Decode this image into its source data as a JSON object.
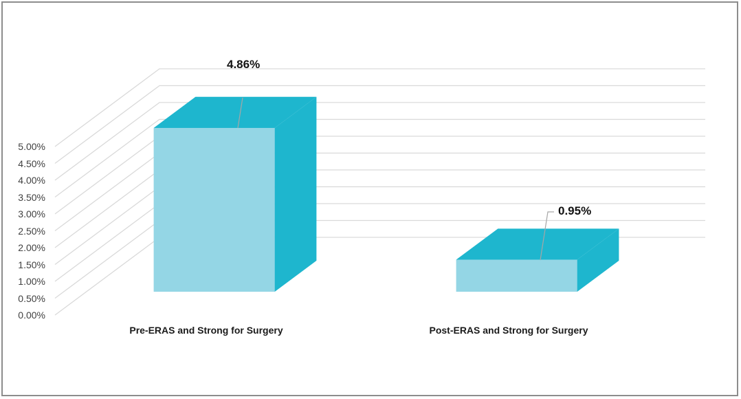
{
  "chart_data": {
    "type": "bar",
    "style": "3d-column",
    "title": "",
    "xlabel": "",
    "ylabel": "",
    "categories": [
      "Pre-ERAS and Strong for Surgery",
      "Post-ERAS and Strong for Surgery"
    ],
    "values": [
      4.86,
      0.95
    ],
    "value_labels": [
      "4.86%",
      "0.95%"
    ],
    "ylim": [
      0,
      5
    ],
    "yticks": [
      "0.00%",
      "0.50%",
      "1.00%",
      "1.50%",
      "2.00%",
      "2.50%",
      "3.00%",
      "3.50%",
      "4.00%",
      "4.50%",
      "5.00%"
    ],
    "grid": true,
    "legend": null
  },
  "colors": {
    "bar_front": "#94d6e5",
    "bar_top": "#1eb6ce",
    "bar_side": "#1eb6ce",
    "grid": "#d9d9d9",
    "border": "#8c8c8c"
  }
}
